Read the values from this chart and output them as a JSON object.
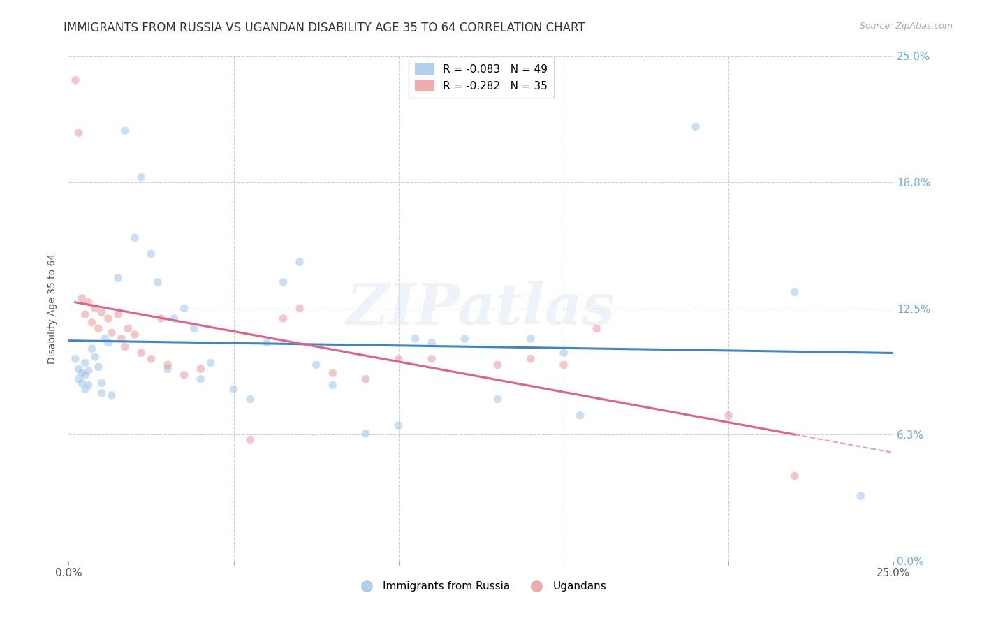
{
  "title": "IMMIGRANTS FROM RUSSIA VS UGANDAN DISABILITY AGE 35 TO 64 CORRELATION CHART",
  "source": "Source: ZipAtlas.com",
  "ylabel": "Disability Age 35 to 64",
  "xlim": [
    0.0,
    0.25
  ],
  "ylim": [
    0.0,
    0.25
  ],
  "ytick_values": [
    0.0,
    0.0625,
    0.125,
    0.1875,
    0.25
  ],
  "ytick_labels": [
    "0.0%",
    "6.3%",
    "12.5%",
    "18.8%",
    "25.0%"
  ],
  "xtick_values": [
    0.0,
    0.05,
    0.1,
    0.15,
    0.2,
    0.25
  ],
  "xtick_labels": [
    "0.0%",
    "",
    "",
    "",
    "",
    "25.0%"
  ],
  "blue_R": -0.083,
  "blue_N": 49,
  "pink_R": -0.282,
  "pink_N": 35,
  "blue_scatter_x": [
    0.002,
    0.003,
    0.003,
    0.004,
    0.004,
    0.005,
    0.005,
    0.005,
    0.006,
    0.006,
    0.007,
    0.008,
    0.009,
    0.01,
    0.01,
    0.011,
    0.012,
    0.013,
    0.015,
    0.017,
    0.02,
    0.022,
    0.025,
    0.027,
    0.03,
    0.032,
    0.035,
    0.038,
    0.04,
    0.043,
    0.05,
    0.055,
    0.06,
    0.065,
    0.07,
    0.075,
    0.08,
    0.09,
    0.1,
    0.105,
    0.11,
    0.12,
    0.13,
    0.14,
    0.15,
    0.155,
    0.19,
    0.22,
    0.24
  ],
  "blue_scatter_y": [
    0.1,
    0.095,
    0.09,
    0.088,
    0.093,
    0.085,
    0.092,
    0.098,
    0.087,
    0.094,
    0.105,
    0.101,
    0.096,
    0.083,
    0.088,
    0.11,
    0.108,
    0.082,
    0.14,
    0.213,
    0.16,
    0.19,
    0.152,
    0.138,
    0.095,
    0.12,
    0.125,
    0.115,
    0.09,
    0.098,
    0.085,
    0.08,
    0.108,
    0.138,
    0.148,
    0.097,
    0.087,
    0.063,
    0.067,
    0.11,
    0.108,
    0.11,
    0.08,
    0.11,
    0.103,
    0.072,
    0.215,
    0.133,
    0.032
  ],
  "pink_scatter_x": [
    0.002,
    0.003,
    0.004,
    0.005,
    0.006,
    0.007,
    0.008,
    0.009,
    0.01,
    0.012,
    0.013,
    0.015,
    0.016,
    0.017,
    0.018,
    0.02,
    0.022,
    0.025,
    0.028,
    0.03,
    0.035,
    0.04,
    0.055,
    0.065,
    0.07,
    0.08,
    0.09,
    0.1,
    0.11,
    0.13,
    0.14,
    0.15,
    0.16,
    0.2,
    0.22
  ],
  "pink_scatter_y": [
    0.238,
    0.212,
    0.13,
    0.122,
    0.128,
    0.118,
    0.125,
    0.115,
    0.123,
    0.12,
    0.113,
    0.122,
    0.11,
    0.106,
    0.115,
    0.112,
    0.103,
    0.1,
    0.12,
    0.097,
    0.092,
    0.095,
    0.06,
    0.12,
    0.125,
    0.093,
    0.09,
    0.1,
    0.1,
    0.097,
    0.1,
    0.097,
    0.115,
    0.072,
    0.042
  ],
  "watermark": "ZIPatlas",
  "bg_color": "#ffffff",
  "scatter_alpha": 0.55,
  "scatter_size": 70,
  "blue_color": "#9fc5e8",
  "pink_color": "#ea9999",
  "blue_line_color": "#3d85c8",
  "pink_line_color": "#e06090",
  "grid_color": "#d0d0d0",
  "right_tick_color": "#6fa8dc",
  "title_fontsize": 12,
  "axis_label_fontsize": 10,
  "legend_fontsize": 11,
  "source_fontsize": 9
}
